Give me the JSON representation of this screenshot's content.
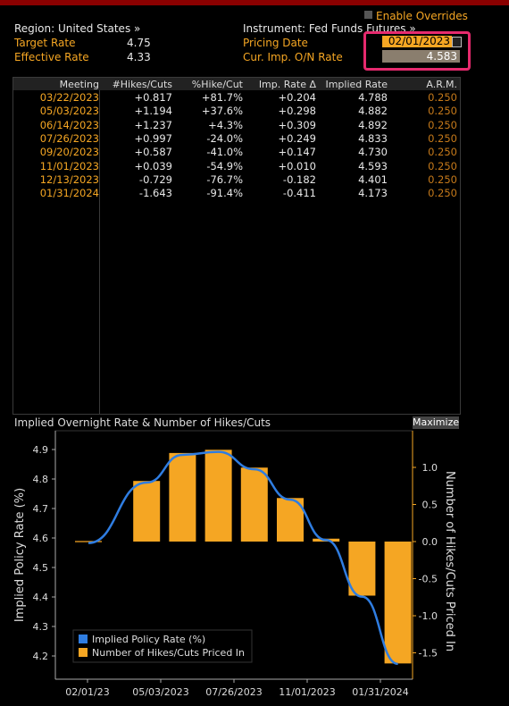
{
  "header": {
    "region_label": "Region: United States »",
    "instrument_label": "Instrument: Fed Funds Futures »",
    "overrides_label": "Enable Overrides",
    "target_rate_label": "Target Rate",
    "target_rate_value": "4.75",
    "effective_rate_label": "Effective Rate",
    "effective_rate_value": "4.33",
    "pricing_date_label": "Pricing Date",
    "pricing_date_value": "02/01/2023",
    "cur_rate_label": "Cur. Imp. O/N Rate",
    "cur_rate_value": "4.583"
  },
  "table": {
    "columns": [
      "Meeting",
      "#Hikes/Cuts",
      "%Hike/Cut",
      "Imp. Rate Δ",
      "Implied Rate",
      "A.R.M."
    ],
    "rows": [
      [
        "03/22/2023",
        "+0.817",
        "+81.7%",
        "+0.204",
        "4.788",
        "0.250"
      ],
      [
        "05/03/2023",
        "+1.194",
        "+37.6%",
        "+0.298",
        "4.882",
        "0.250"
      ],
      [
        "06/14/2023",
        "+1.237",
        "+4.3%",
        "+0.309",
        "4.892",
        "0.250"
      ],
      [
        "07/26/2023",
        "+0.997",
        "-24.0%",
        "+0.249",
        "4.833",
        "0.250"
      ],
      [
        "09/20/2023",
        "+0.587",
        "-41.0%",
        "+0.147",
        "4.730",
        "0.250"
      ],
      [
        "11/01/2023",
        "+0.039",
        "-54.9%",
        "+0.010",
        "4.593",
        "0.250"
      ],
      [
        "12/13/2023",
        "-0.729",
        "-76.7%",
        "-0.182",
        "4.401",
        "0.250"
      ],
      [
        "01/31/2024",
        "-1.643",
        "-91.4%",
        "-0.411",
        "4.173",
        "0.250"
      ]
    ]
  },
  "chart": {
    "title": "Implied Overnight Rate & Number of Hikes/Cuts",
    "maximize_label": "Maximize"
  },
  "chart_data": {
    "type": "bar",
    "title": "Implied Overnight Rate & Number of Hikes/Cuts",
    "ylabel": "Implied Policy Rate (%)",
    "y2label": "Number of Hikes/Cuts Priced In",
    "ylim": [
      4.15,
      4.95
    ],
    "y2lim": [
      -1.7,
      1.5
    ],
    "yticks": [
      "4.2",
      "4.3",
      "4.4",
      "4.5",
      "4.6",
      "4.7",
      "4.8",
      "4.9"
    ],
    "y2ticks": [
      "-1.5",
      "-1.0",
      "-0.5",
      "0.0",
      "0.5",
      "1.0"
    ],
    "xticks": [
      "02/01/23",
      "05/03/2023",
      "07/26/2023",
      "11/01/2023",
      "01/31/2024"
    ],
    "categories": [
      "02/01/2023",
      "03/22/2023",
      "05/03/2023",
      "06/14/2023",
      "07/26/2023",
      "09/20/2023",
      "11/01/2023",
      "12/13/2023",
      "01/31/2024"
    ],
    "series": [
      {
        "name": "Implied Policy Rate (%)",
        "type": "line",
        "color": "#2f7de1",
        "values": [
          4.583,
          4.788,
          4.882,
          4.892,
          4.833,
          4.73,
          4.593,
          4.401,
          4.173
        ]
      },
      {
        "name": "Number of Hikes/Cuts Priced In",
        "type": "bar",
        "color": "#f5a623",
        "values": [
          0.0,
          0.817,
          1.194,
          1.237,
          0.997,
          0.587,
          0.039,
          -0.729,
          -1.643
        ]
      }
    ],
    "legend_position": "bottom-left"
  }
}
